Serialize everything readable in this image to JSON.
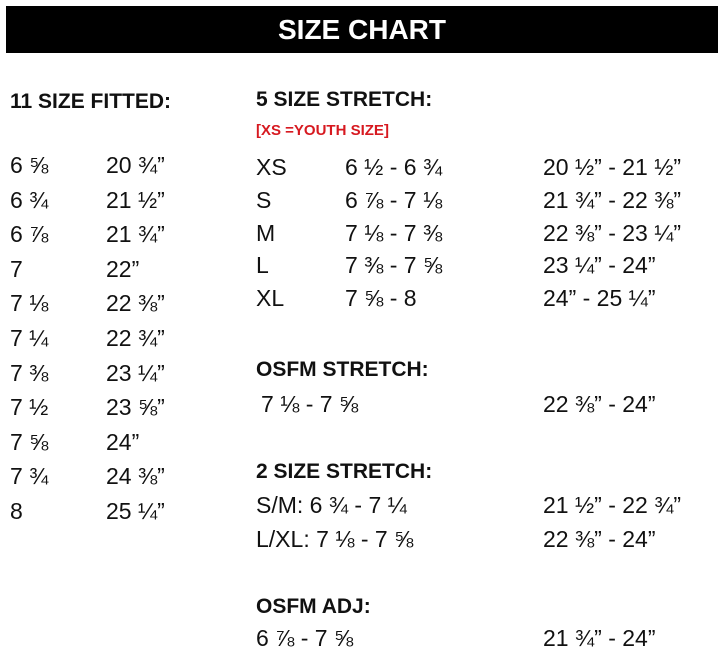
{
  "title": "SIZE CHART",
  "accent_color": "#d71920",
  "fitted": {
    "heading": "11 SIZE FITTED:",
    "rows": [
      [
        "6 ⅝",
        "20 ¾”"
      ],
      [
        "6 ¾",
        "21 ½”"
      ],
      [
        "6 ⅞",
        "21 ¾”"
      ],
      [
        "7",
        "22”"
      ],
      [
        "7 ⅛",
        "22 ⅜”"
      ],
      [
        "7 ¼",
        "22 ¾”"
      ],
      [
        "7 ⅜",
        "23 ¼”"
      ],
      [
        "7 ½",
        "23 ⅝”"
      ],
      [
        "7 ⅝",
        "24”"
      ],
      [
        "7 ¾",
        "24 ⅜”"
      ],
      [
        "8",
        "25 ¼”"
      ]
    ]
  },
  "stretch5": {
    "heading": "5 SIZE STRETCH:",
    "note": "[XS =YOUTH SIZE]",
    "rows": [
      [
        "XS",
        "6 ½ - 6 ¾",
        "20 ½” - 21 ½”"
      ],
      [
        "S",
        "6 ⅞ - 7 ⅛",
        "21 ¾” - 22 ⅜”"
      ],
      [
        "M",
        "7 ⅛ - 7 ⅜",
        "22 ⅜” - 23 ¼”"
      ],
      [
        "L",
        "7 ⅜ - 7 ⅝",
        "23 ¼” - 24”"
      ],
      [
        "XL",
        "7 ⅝ - 8",
        "24” - 25 ¼”"
      ]
    ]
  },
  "osfm_stretch": {
    "heading": "OSFM STRETCH:",
    "rows": [
      [
        "7 ⅛ - 7 ⅝",
        "22 ⅜” - 24”"
      ]
    ]
  },
  "stretch2": {
    "heading": "2 SIZE STRETCH:",
    "rows": [
      [
        "S/M: 6 ¾ - 7 ¼",
        "21 ½” - 22 ¾”"
      ],
      [
        "L/XL: 7 ⅛ - 7 ⅝",
        "22 ⅜” - 24”"
      ]
    ]
  },
  "osfm_adj": {
    "heading": "OSFM ADJ:",
    "rows": [
      [
        "6 ⅞ - 7 ⅝",
        "21 ¾” - 24”"
      ]
    ]
  }
}
